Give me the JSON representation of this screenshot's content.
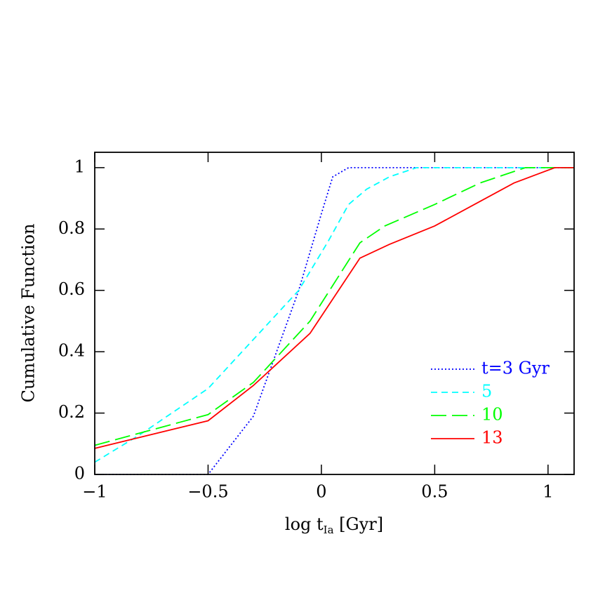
{
  "chart_data": {
    "type": "line",
    "xlabel_parts": [
      "log t",
      "Ia",
      " [Gyr]"
    ],
    "ylabel": "Cumulative Function",
    "xlim": [
      -1,
      1.115
    ],
    "ylim": [
      0,
      1.05
    ],
    "xticks": [
      {
        "value": -1,
        "label": "−1"
      },
      {
        "value": -0.5,
        "label": "−0.5"
      },
      0,
      0.5,
      1
    ],
    "yticks": [
      0,
      0.2,
      0.4,
      0.6,
      0.8,
      1
    ],
    "legend": "lower right",
    "series": [
      {
        "name": "t=3 Gyr",
        "color": "#0000ff",
        "linestyle": "dotted",
        "x": [
          -1,
          -0.5,
          -0.3,
          -0.1,
          0.0,
          0.05,
          0.12,
          1.115
        ],
        "values": [
          0,
          0,
          0.19,
          0.6,
          0.85,
          0.97,
          1,
          1
        ]
      },
      {
        "name": "5",
        "color": "#00ffff",
        "linestyle": "dashed",
        "x": [
          -1,
          -0.8,
          -0.5,
          -0.3,
          -0.1,
          0.03,
          0.12,
          0.2,
          0.3,
          0.42,
          1.115
        ],
        "values": [
          0.04,
          0.13,
          0.28,
          0.44,
          0.6,
          0.76,
          0.88,
          0.93,
          0.97,
          1,
          1
        ]
      },
      {
        "name": "10",
        "color": "#00ff00",
        "linestyle": "longdash",
        "x": [
          -1,
          -0.5,
          -0.3,
          -0.05,
          0.17,
          0.28,
          0.5,
          0.7,
          0.9,
          1.115
        ],
        "values": [
          0.095,
          0.195,
          0.3,
          0.5,
          0.755,
          0.81,
          0.88,
          0.95,
          1,
          1
        ]
      },
      {
        "name": "13",
        "color": "#ff0000",
        "linestyle": "solid",
        "x": [
          -1,
          -0.5,
          -0.3,
          -0.05,
          0.17,
          0.3,
          0.5,
          0.7,
          0.85,
          1.03,
          1.115
        ],
        "values": [
          0.085,
          0.175,
          0.29,
          0.46,
          0.705,
          0.75,
          0.81,
          0.89,
          0.95,
          1,
          1
        ]
      }
    ]
  }
}
